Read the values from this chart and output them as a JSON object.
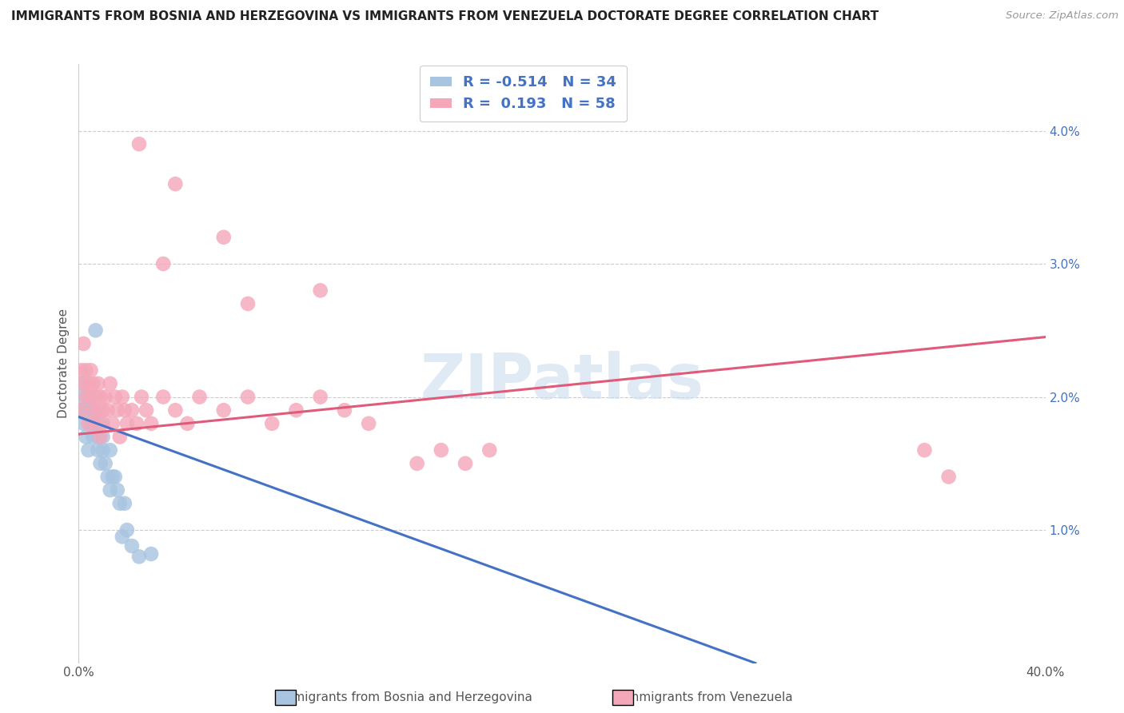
{
  "title": "IMMIGRANTS FROM BOSNIA AND HERZEGOVINA VS IMMIGRANTS FROM VENEZUELA DOCTORATE DEGREE CORRELATION CHART",
  "source": "Source: ZipAtlas.com",
  "ylabel": "Doctorate Degree",
  "legend1_color": "#a8c4e0",
  "legend2_color": "#f4a7b9",
  "line1_color": "#4472c4",
  "line2_color": "#e05a7a",
  "watermark": "ZIPatlas",
  "xlim": [
    0.0,
    0.4
  ],
  "ylim": [
    0.0,
    0.045
  ],
  "ytick_vals": [
    0.01,
    0.02,
    0.03,
    0.04
  ],
  "ytick_labels": [
    "1.0%",
    "2.0%",
    "3.0%",
    "4.0%"
  ],
  "bosnia_r": -0.514,
  "bosnia_n": 34,
  "venezuela_r": 0.193,
  "venezuela_n": 58,
  "bosnia_x": [
    0.001,
    0.001,
    0.002,
    0.002,
    0.003,
    0.003,
    0.004,
    0.004,
    0.005,
    0.005,
    0.006,
    0.006,
    0.007,
    0.007,
    0.008,
    0.008,
    0.009,
    0.009,
    0.01,
    0.01,
    0.011,
    0.012,
    0.013,
    0.013,
    0.014,
    0.015,
    0.016,
    0.017,
    0.018,
    0.019,
    0.02,
    0.022,
    0.025,
    0.03
  ],
  "bosnia_y": [
    0.019,
    0.021,
    0.02,
    0.018,
    0.019,
    0.017,
    0.02,
    0.016,
    0.018,
    0.02,
    0.019,
    0.017,
    0.018,
    0.025,
    0.017,
    0.016,
    0.015,
    0.018,
    0.016,
    0.017,
    0.015,
    0.014,
    0.016,
    0.013,
    0.014,
    0.014,
    0.013,
    0.012,
    0.0095,
    0.012,
    0.01,
    0.0088,
    0.008,
    0.0082
  ],
  "venezuela_x": [
    0.001,
    0.001,
    0.002,
    0.002,
    0.003,
    0.003,
    0.004,
    0.004,
    0.005,
    0.005,
    0.006,
    0.006,
    0.007,
    0.007,
    0.008,
    0.008,
    0.009,
    0.009,
    0.01,
    0.01,
    0.011,
    0.012,
    0.013,
    0.014,
    0.015,
    0.016,
    0.017,
    0.018,
    0.019,
    0.02,
    0.022,
    0.024,
    0.026,
    0.028,
    0.03,
    0.035,
    0.04,
    0.045,
    0.05,
    0.06,
    0.07,
    0.08,
    0.09,
    0.1,
    0.11,
    0.12,
    0.14,
    0.15,
    0.16,
    0.17,
    0.025,
    0.04,
    0.1,
    0.035,
    0.06,
    0.07,
    0.35,
    0.36
  ],
  "venezuela_y": [
    0.019,
    0.022,
    0.021,
    0.024,
    0.02,
    0.022,
    0.021,
    0.018,
    0.02,
    0.022,
    0.019,
    0.021,
    0.02,
    0.018,
    0.019,
    0.021,
    0.017,
    0.02,
    0.019,
    0.018,
    0.02,
    0.019,
    0.021,
    0.018,
    0.02,
    0.019,
    0.017,
    0.02,
    0.019,
    0.018,
    0.019,
    0.018,
    0.02,
    0.019,
    0.018,
    0.02,
    0.019,
    0.018,
    0.02,
    0.019,
    0.02,
    0.018,
    0.019,
    0.02,
    0.019,
    0.018,
    0.015,
    0.016,
    0.015,
    0.016,
    0.039,
    0.036,
    0.028,
    0.03,
    0.032,
    0.027,
    0.016,
    0.014
  ],
  "bos_line_x": [
    0.0,
    0.28
  ],
  "bos_line_y": [
    0.0185,
    0.0
  ],
  "ven_line_x": [
    0.0,
    0.4
  ],
  "ven_line_y": [
    0.0172,
    0.0245
  ]
}
